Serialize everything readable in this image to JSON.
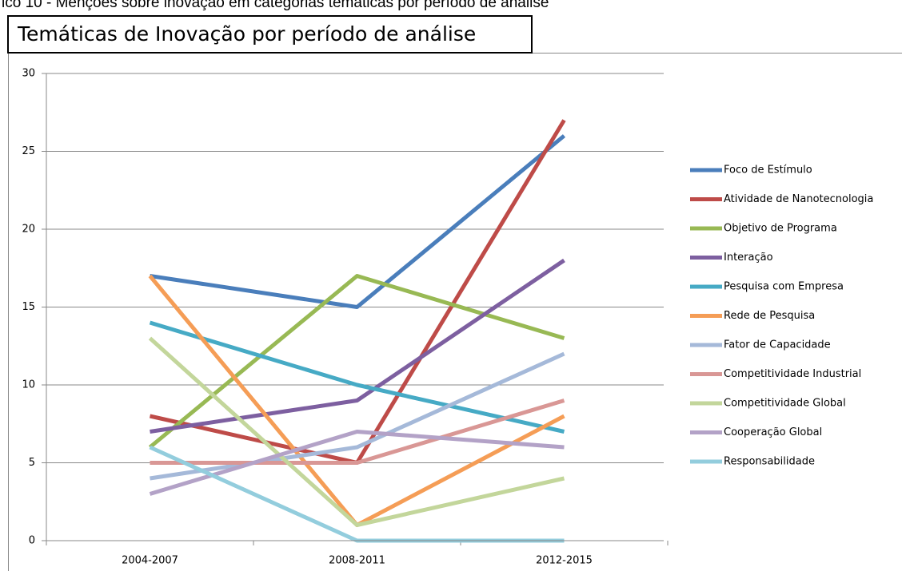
{
  "chart_data": {
    "type": "line",
    "caption": "ico 10 - Menções sobre inovação em categorias temáticas por período de análise",
    "title": "Temáticas de Inovação por período de análise",
    "categories": [
      "2004-2007",
      "2008-2011",
      "2012-2015"
    ],
    "ylim": [
      0,
      30
    ],
    "yticks": [
      0,
      5,
      10,
      15,
      20,
      25,
      30
    ],
    "grid": true,
    "legend": "right",
    "series": [
      {
        "name": "Foco de Estímulo",
        "color": "#4a7ebb",
        "values": [
          17,
          15,
          26
        ]
      },
      {
        "name": "Atividade de Nanotecnologia",
        "color": "#be4b48",
        "values": [
          8,
          5,
          27
        ]
      },
      {
        "name": "Objetivo de Programa",
        "color": "#98b954",
        "values": [
          6,
          17,
          13
        ]
      },
      {
        "name": "Interação",
        "color": "#7d5fa0",
        "values": [
          7,
          9,
          18
        ]
      },
      {
        "name": "Pesquisa com Empresa",
        "color": "#46aac5",
        "values": [
          14,
          10,
          7
        ]
      },
      {
        "name": "Rede de Pesquisa",
        "color": "#f59d56",
        "values": [
          17,
          1,
          8
        ]
      },
      {
        "name": "Fator de Capacidade",
        "color": "#a5b9d9",
        "values": [
          4,
          6,
          12
        ]
      },
      {
        "name": "Competitividade Industrial",
        "color": "#d99795",
        "values": [
          5,
          5,
          9
        ]
      },
      {
        "name": "Competitividade Global",
        "color": "#c3d69b",
        "values": [
          13,
          1,
          4
        ]
      },
      {
        "name": "Cooperação Global",
        "color": "#b3a2c7",
        "values": [
          3,
          7,
          6
        ]
      },
      {
        "name": "Responsabilidade",
        "color": "#93cddd",
        "values": [
          6,
          0,
          0
        ]
      }
    ]
  }
}
